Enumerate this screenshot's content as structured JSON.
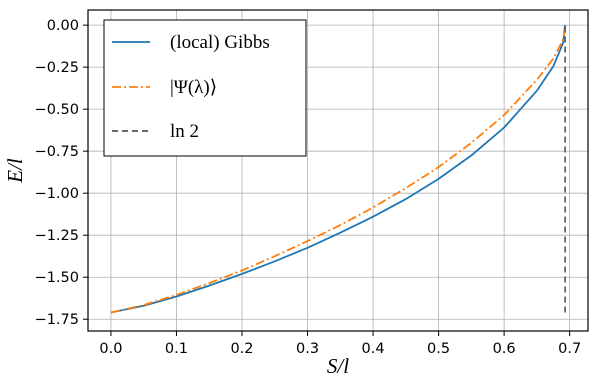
{
  "chart_data": {
    "type": "line",
    "xlabel": "S/l",
    "ylabel": "E/l",
    "xlim": [
      -0.035,
      0.728
    ],
    "ylim": [
      -1.82,
      0.09
    ],
    "x_ticks": [
      0.0,
      0.1,
      0.2,
      0.3,
      0.4,
      0.5,
      0.6,
      0.7
    ],
    "x_tick_labels": [
      "0.0",
      "0.1",
      "0.2",
      "0.3",
      "0.4",
      "0.5",
      "0.6",
      "0.7"
    ],
    "y_ticks": [
      0.0,
      -0.25,
      -0.5,
      -0.75,
      -1.0,
      -1.25,
      -1.5,
      -1.75
    ],
    "y_tick_labels": [
      "0.00",
      "−0.25",
      "−0.50",
      "−0.75",
      "−1.00",
      "−1.25",
      "−1.50",
      "−1.75"
    ],
    "grid": true,
    "legend_position": "top-left",
    "series": [
      {
        "name": "(local) Gibbs",
        "style": "solid",
        "color": "#1f77b4",
        "x": [
          0.0,
          0.05,
          0.1,
          0.15,
          0.2,
          0.25,
          0.3,
          0.35,
          0.4,
          0.45,
          0.5,
          0.55,
          0.6,
          0.65,
          0.675,
          0.69,
          0.693
        ],
        "y": [
          -1.71,
          -1.67,
          -1.615,
          -1.55,
          -1.48,
          -1.405,
          -1.325,
          -1.235,
          -1.14,
          -1.035,
          -0.915,
          -0.775,
          -0.61,
          -0.39,
          -0.245,
          -0.105,
          0.0
        ]
      },
      {
        "name": "|Ψ(λ)⟩",
        "style": "dashdot",
        "color": "#ff7f0e",
        "x": [
          0.0,
          0.05,
          0.1,
          0.15,
          0.2,
          0.25,
          0.3,
          0.35,
          0.4,
          0.45,
          0.5,
          0.55,
          0.6,
          0.65,
          0.675,
          0.69,
          0.693
        ],
        "y": [
          -1.71,
          -1.665,
          -1.605,
          -1.535,
          -1.46,
          -1.375,
          -1.285,
          -1.19,
          -1.085,
          -0.97,
          -0.845,
          -0.7,
          -0.535,
          -0.325,
          -0.2,
          -0.085,
          -0.02
        ]
      },
      {
        "name": "ln 2",
        "style": "dashed",
        "color": "#555555",
        "x": [
          0.693,
          0.693
        ],
        "y": [
          -1.71,
          0.0
        ]
      }
    ]
  }
}
